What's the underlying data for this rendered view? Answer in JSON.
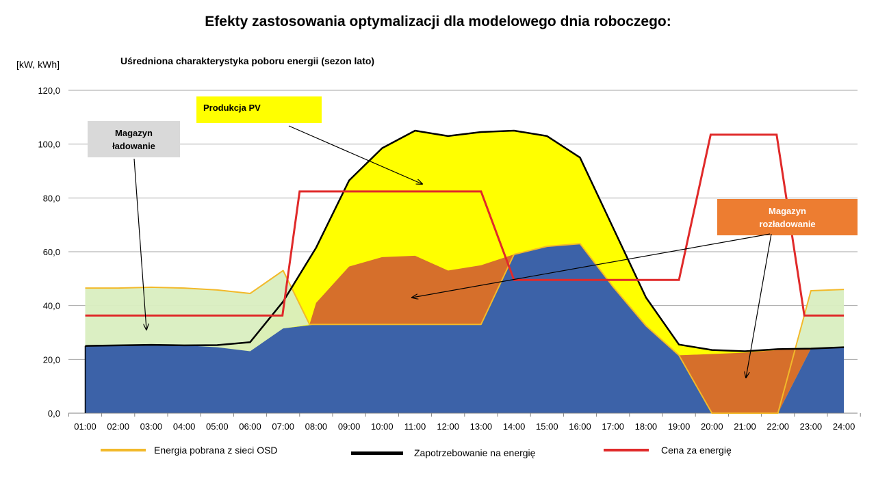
{
  "title": "Efekty zastosowania optymalizacji dla modelowego dnia roboczego:",
  "subtitle": "Uśredniona charakterystyka poboru energii (sezon lato)",
  "unit_label": "[kW, kWh]",
  "annotations": {
    "pv": "Produkcja PV",
    "charge_line1": "Magazyn",
    "charge_line2": "ładowanie",
    "discharge_line1": "Magazyn",
    "discharge_line2": "rozładowanie"
  },
  "legend": {
    "grid": "Energia pobrana z sieci OSD",
    "demand": "Zapotrzebowanie na energię",
    "price": "Cena za energię"
  },
  "colors": {
    "pv_fill": "#ffff00",
    "battery_charge_fill": "#d9eec0",
    "battery_discharge_fill": "#d66f2b",
    "grid_area_fill": "#3c62a8",
    "grid_line": "#f2b92a",
    "demand_line": "#000000",
    "price_line": "#e02a2a",
    "discharge_box": "#ed7d31",
    "charge_box": "#d9d9d9",
    "gridline": "#a6a6a6"
  },
  "chart_data": {
    "type": "area",
    "categories": [
      "01:00",
      "02:00",
      "03:00",
      "04:00",
      "05:00",
      "06:00",
      "07:00",
      "08:00",
      "09:00",
      "10:00",
      "11:00",
      "12:00",
      "13:00",
      "14:00",
      "15:00",
      "16:00",
      "17:00",
      "18:00",
      "19:00",
      "20:00",
      "21:00",
      "22:00",
      "23:00",
      "24:00"
    ],
    "ylim": [
      0,
      120
    ],
    "yticks": [
      "0,0",
      "20,0",
      "40,0",
      "60,0",
      "80,0",
      "100,0",
      "120,0"
    ],
    "ytick_values": [
      0,
      20,
      40,
      60,
      80,
      100,
      120
    ],
    "grid": true,
    "legend_position": "bottom",
    "series": [
      {
        "name": "Zapotrzebowanie na energię",
        "values": [
          25.0,
          25.2,
          25.4,
          25.2,
          25.3,
          26.4,
          41.5,
          61.5,
          86.5,
          98.5,
          105.0,
          103.0,
          104.5,
          105.0,
          103.0,
          95.0,
          69.0,
          43.0,
          25.5,
          23.5,
          23.0,
          23.8,
          24.0,
          24.5
        ]
      },
      {
        "name": "Energia pobrana z sieci OSD",
        "values": [
          46.5,
          46.5,
          46.8,
          46.5,
          45.8,
          44.5,
          53.0,
          33.0,
          33.0,
          33.0,
          33.0,
          33.0,
          33.0,
          59.0,
          62.0,
          63.0,
          47.0,
          32.5,
          21.5,
          0.0,
          0.0,
          0.0,
          45.5,
          46.0
        ]
      },
      {
        "name": "Cena za energię",
        "values": [
          36.3,
          36.3,
          36.3,
          36.3,
          36.3,
          36.3,
          36.3,
          82.4,
          82.4,
          82.4,
          82.4,
          82.4,
          82.4,
          49.5,
          49.5,
          49.5,
          49.5,
          49.5,
          49.5,
          103.5,
          103.5,
          103.5,
          36.3,
          36.3
        ]
      },
      {
        "values": [
          25.0,
          25.2,
          25.4,
          25.2,
          24.5,
          23.0,
          31.5,
          33.0,
          33.0,
          33.0,
          33.0,
          33.0,
          33.0,
          59.0,
          62.0,
          63.0,
          47.0,
          32.5,
          21.5,
          0.0,
          0.0,
          0.0,
          24.0,
          24.5
        ]
      },
      {
        "values": [
          25.0,
          25.2,
          25.4,
          25.2,
          24.5,
          23.0,
          31.5,
          41.0,
          54.5,
          58.0,
          58.5,
          53.0,
          55.0,
          59.0,
          62.0,
          63.0,
          47.0,
          32.5,
          21.5,
          22.0,
          22.5,
          23.5,
          24.0,
          24.5
        ]
      }
    ],
    "price_points": [
      {
        "x": 1.0,
        "y": 36.3
      },
      {
        "x": 6.98,
        "y": 36.3
      },
      {
        "x": 7.5,
        "y": 82.4
      },
      {
        "x": 13.0,
        "y": 82.4
      },
      {
        "x": 14.0,
        "y": 49.5
      },
      {
        "x": 19.0,
        "y": 49.5
      },
      {
        "x": 19.96,
        "y": 103.5
      },
      {
        "x": 21.96,
        "y": 103.5
      },
      {
        "x": 22.8,
        "y": 36.3
      },
      {
        "x": 24.0,
        "y": 36.3
      }
    ],
    "grid_points": [
      {
        "x": 1.0,
        "y": 46.5
      },
      {
        "x": 2.0,
        "y": 46.5
      },
      {
        "x": 3.0,
        "y": 46.8
      },
      {
        "x": 4.0,
        "y": 46.5
      },
      {
        "x": 5.0,
        "y": 45.8
      },
      {
        "x": 6.0,
        "y": 44.5
      },
      {
        "x": 7.0,
        "y": 53.0
      },
      {
        "x": 7.8,
        "y": 33.0
      },
      {
        "x": 13.0,
        "y": 33.0
      },
      {
        "x": 14.0,
        "y": 59.0
      },
      {
        "x": 15.0,
        "y": 62.0
      },
      {
        "x": 16.0,
        "y": 63.0
      },
      {
        "x": 17.0,
        "y": 47.0
      },
      {
        "x": 18.0,
        "y": 32.5
      },
      {
        "x": 19.0,
        "y": 21.5
      },
      {
        "x": 20.0,
        "y": 0.0
      },
      {
        "x": 22.0,
        "y": 0.0
      },
      {
        "x": 23.0,
        "y": 45.5
      },
      {
        "x": 24.0,
        "y": 46.0
      }
    ]
  }
}
